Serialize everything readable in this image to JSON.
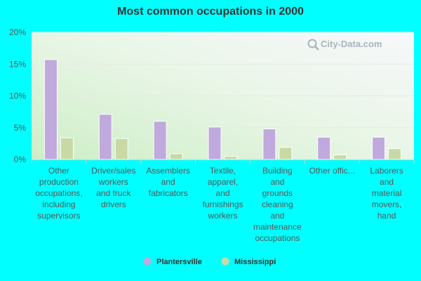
{
  "chart_data": {
    "type": "bar",
    "title": "Most common occupations in 2000",
    "categories": [
      [
        "Other",
        "production",
        "occupations,",
        "including",
        "supervisors"
      ],
      [
        "Driver/sales",
        "workers",
        "and truck",
        "drivers"
      ],
      [
        "Assemblers",
        "and",
        "fabricators"
      ],
      [
        "Textile,",
        "apparel,",
        "and",
        "furnishings",
        "workers"
      ],
      [
        "Building",
        "and",
        "grounds",
        "cleaning",
        "and",
        "maintenance",
        "occupations"
      ],
      [
        "Other offic..."
      ],
      [
        "Laborers",
        "and",
        "material",
        "movers,",
        "hand"
      ]
    ],
    "series": [
      {
        "name": "Plantersville",
        "color": "#c0a9dc",
        "values": [
          15.7,
          7.1,
          6.0,
          5.1,
          4.8,
          3.5,
          3.5
        ]
      },
      {
        "name": "Mississippi",
        "color": "#c8d9a6",
        "values": [
          3.4,
          3.3,
          0.9,
          0.5,
          1.9,
          0.7,
          1.7
        ]
      }
    ],
    "ylim": [
      0,
      20
    ],
    "yticks": [
      "0%",
      "5%",
      "10%",
      "15%",
      "20%"
    ],
    "ytick_values": [
      0,
      5,
      10,
      15,
      20
    ],
    "grid": true,
    "legend": "bottom"
  },
  "watermark": {
    "text": "City-Data.com",
    "icon": "magnifier-icon"
  }
}
